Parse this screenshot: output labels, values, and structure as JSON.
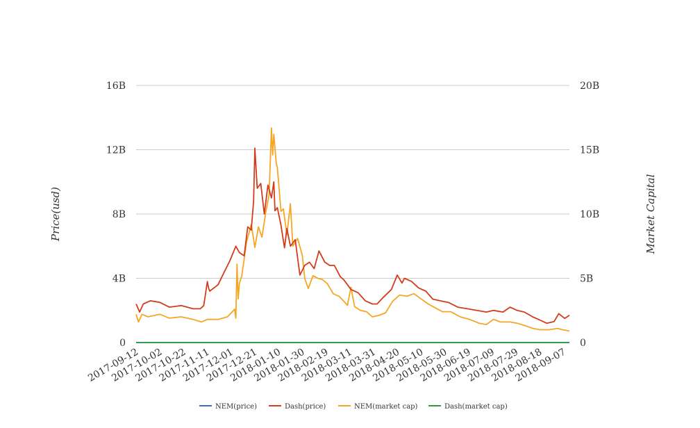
{
  "chart_data": {
    "type": "line",
    "ylabel": "Price(usd)",
    "y2label": "Market Capital",
    "ylim": [
      0,
      16000000000
    ],
    "y2lim": [
      0,
      20000000000
    ],
    "yticks": [
      "0",
      "4B",
      "8B",
      "12B",
      "16B"
    ],
    "y2ticks": [
      "0",
      "5B",
      "10B",
      "15B",
      "20B"
    ],
    "x_start": "2017-09-12",
    "x_end": "2018-09-12",
    "xticks": [
      "2017-09-12",
      "2017-10-02",
      "2017-10-22",
      "2017-11-11",
      "2017-12-01",
      "2017-12-21",
      "2018-01-10",
      "2018-01-30",
      "2018-02-19",
      "2018-03-11",
      "2018-03-31",
      "2018-04-20",
      "2018-05-10",
      "2018-05-30",
      "2018-06-19",
      "2018-07-09",
      "2018-07-29",
      "2018-08-18",
      "2018-09-07"
    ],
    "grid": true,
    "legend_position": "bottom-center",
    "series": [
      {
        "name": "NEM(price)",
        "color": "#3a6cc0",
        "axis": "left",
        "x": [
          "2017-09-12",
          "2018-09-12"
        ],
        "y": [
          0.3,
          0.1
        ]
      },
      {
        "name": "Dash(price)",
        "color": "#d23c1c",
        "axis": "left",
        "x": [
          "2017-09-12",
          "2017-09-15",
          "2017-09-18",
          "2017-09-24",
          "2017-10-02",
          "2017-10-10",
          "2017-10-20",
          "2017-10-30",
          "2017-11-05",
          "2017-11-08",
          "2017-11-11",
          "2017-11-12",
          "2017-11-13",
          "2017-11-20",
          "2017-11-26",
          "2017-11-30",
          "2017-12-05",
          "2017-12-08",
          "2017-12-12",
          "2017-12-15",
          "2017-12-18",
          "2017-12-20",
          "2017-12-21",
          "2017-12-23",
          "2017-12-26",
          "2017-12-29",
          "2018-01-01",
          "2018-01-04",
          "2018-01-06",
          "2018-01-07",
          "2018-01-09",
          "2018-01-12",
          "2018-01-15",
          "2018-01-17",
          "2018-01-20",
          "2018-01-24",
          "2018-01-28",
          "2018-02-01",
          "2018-02-05",
          "2018-02-09",
          "2018-02-13",
          "2018-02-18",
          "2018-02-22",
          "2018-02-26",
          "2018-03-03",
          "2018-03-06",
          "2018-03-12",
          "2018-03-18",
          "2018-03-24",
          "2018-03-30",
          "2018-04-03",
          "2018-04-08",
          "2018-04-15",
          "2018-04-20",
          "2018-04-24",
          "2018-04-26",
          "2018-05-02",
          "2018-05-08",
          "2018-05-14",
          "2018-05-20",
          "2018-05-26",
          "2018-06-02",
          "2018-06-10",
          "2018-06-18",
          "2018-06-26",
          "2018-07-04",
          "2018-07-10",
          "2018-07-18",
          "2018-07-24",
          "2018-07-30",
          "2018-08-05",
          "2018-08-12",
          "2018-08-18",
          "2018-08-24",
          "2018-08-30",
          "2018-09-03",
          "2018-09-08",
          "2018-09-12"
        ],
        "y": [
          2400000000.0,
          1900000000.0,
          2400000000.0,
          2600000000.0,
          2500000000.0,
          2200000000.0,
          2300000000.0,
          2100000000.0,
          2100000000.0,
          2300000000.0,
          3800000000.0,
          3400000000.0,
          3200000000.0,
          3600000000.0,
          4500000000.0,
          5100000000.0,
          6000000000.0,
          5600000000.0,
          5400000000.0,
          7200000000.0,
          7000000000.0,
          8800000000.0,
          12100000000.0,
          9600000000.0,
          9900000000.0,
          8000000000.0,
          9800000000.0,
          9000000000.0,
          10000000000.0,
          8200000000.0,
          8400000000.0,
          7300000000.0,
          5900000000.0,
          7100000000.0,
          6000000000.0,
          6400000000.0,
          4200000000.0,
          4800000000.0,
          5000000000.0,
          4600000000.0,
          5700000000.0,
          5000000000.0,
          4800000000.0,
          4800000000.0,
          4100000000.0,
          3900000000.0,
          3300000000.0,
          3100000000.0,
          2600000000.0,
          2400000000.0,
          2400000000.0,
          2800000000.0,
          3300000000.0,
          4200000000.0,
          3700000000.0,
          4000000000.0,
          3800000000.0,
          3400000000.0,
          3200000000.0,
          2700000000.0,
          2600000000.0,
          2500000000.0,
          2200000000.0,
          2100000000.0,
          2000000000.0,
          1900000000.0,
          2000000000.0,
          1900000000.0,
          2200000000.0,
          2000000000.0,
          1900000000.0,
          1600000000.0,
          1400000000.0,
          1200000000.0,
          1300000000.0,
          1800000000.0,
          1500000000.0,
          1700000000.0
        ]
      },
      {
        "name": "NEM(market cap)",
        "color": "#f5a623",
        "axis": "right",
        "x": [
          "2017-09-12",
          "2017-09-14",
          "2017-09-17",
          "2017-09-22",
          "2017-10-02",
          "2017-10-10",
          "2017-10-20",
          "2017-10-30",
          "2017-11-06",
          "2017-11-11",
          "2017-11-20",
          "2017-11-28",
          "2017-12-02",
          "2017-12-04",
          "2017-12-05",
          "2017-12-06",
          "2017-12-07",
          "2017-12-08",
          "2017-12-10",
          "2017-12-14",
          "2017-12-18",
          "2017-12-21",
          "2017-12-24",
          "2017-12-27",
          "2017-12-30",
          "2018-01-02",
          "2018-01-04",
          "2018-01-05",
          "2018-01-06",
          "2018-01-08",
          "2018-01-09",
          "2018-01-12",
          "2018-01-14",
          "2018-01-17",
          "2018-01-20",
          "2018-01-22",
          "2018-01-26",
          "2018-01-30",
          "2018-02-01",
          "2018-02-04",
          "2018-02-08",
          "2018-02-12",
          "2018-02-16",
          "2018-02-20",
          "2018-02-25",
          "2018-03-02",
          "2018-03-06",
          "2018-03-09",
          "2018-03-12",
          "2018-03-15",
          "2018-03-20",
          "2018-03-25",
          "2018-03-30",
          "2018-04-04",
          "2018-04-10",
          "2018-04-16",
          "2018-04-22",
          "2018-04-28",
          "2018-05-04",
          "2018-05-10",
          "2018-05-16",
          "2018-05-22",
          "2018-05-28",
          "2018-06-04",
          "2018-06-12",
          "2018-06-20",
          "2018-06-28",
          "2018-07-04",
          "2018-07-10",
          "2018-07-16",
          "2018-07-24",
          "2018-07-30",
          "2018-08-06",
          "2018-08-12",
          "2018-08-18",
          "2018-08-26",
          "2018-09-02",
          "2018-09-06",
          "2018-09-12"
        ],
        "y": [
          2200000000.0,
          1600000000.0,
          2200000000.0,
          2000000000.0,
          2200000000.0,
          1900000000.0,
          2000000000.0,
          1800000000.0,
          1600000000.0,
          1800000000.0,
          1800000000.0,
          2000000000.0,
          2400000000.0,
          2600000000.0,
          1900000000.0,
          6100000000.0,
          3400000000.0,
          4600000000.0,
          5200000000.0,
          7800000000.0,
          9200000000.0,
          7400000000.0,
          9000000000.0,
          8200000000.0,
          10000000000.0,
          11500000000.0,
          16700000000.0,
          14600000000.0,
          16200000000.0,
          14000000000.0,
          13600000000.0,
          10200000000.0,
          10400000000.0,
          8400000000.0,
          10800000000.0,
          7500000000.0,
          8100000000.0,
          6800000000.0,
          5000000000.0,
          4200000000.0,
          5200000000.0,
          5000000000.0,
          4900000000.0,
          4600000000.0,
          3800000000.0,
          3600000000.0,
          3200000000.0,
          2900000000.0,
          4300000000.0,
          2800000000.0,
          2500000000.0,
          2400000000.0,
          2000000000.0,
          2100000000.0,
          2300000000.0,
          3200000000.0,
          3700000000.0,
          3600000000.0,
          3800000000.0,
          3400000000.0,
          3000000000.0,
          2700000000.0,
          2400000000.0,
          2400000000.0,
          2000000000.0,
          1800000000.0,
          1500000000.0,
          1400000000.0,
          1800000000.0,
          1600000000.0,
          1600000000.0,
          1500000000.0,
          1300000000.0,
          1100000000.0,
          1000000000.0,
          1000000000.0,
          1100000000.0,
          1000000000.0,
          900000000.0
        ]
      },
      {
        "name": "Dash(market cap)",
        "color": "#2a9d3a",
        "axis": "left",
        "x": [
          "2017-09-12",
          "2018-09-12"
        ],
        "y": [
          2.0,
          1.5
        ]
      }
    ]
  }
}
